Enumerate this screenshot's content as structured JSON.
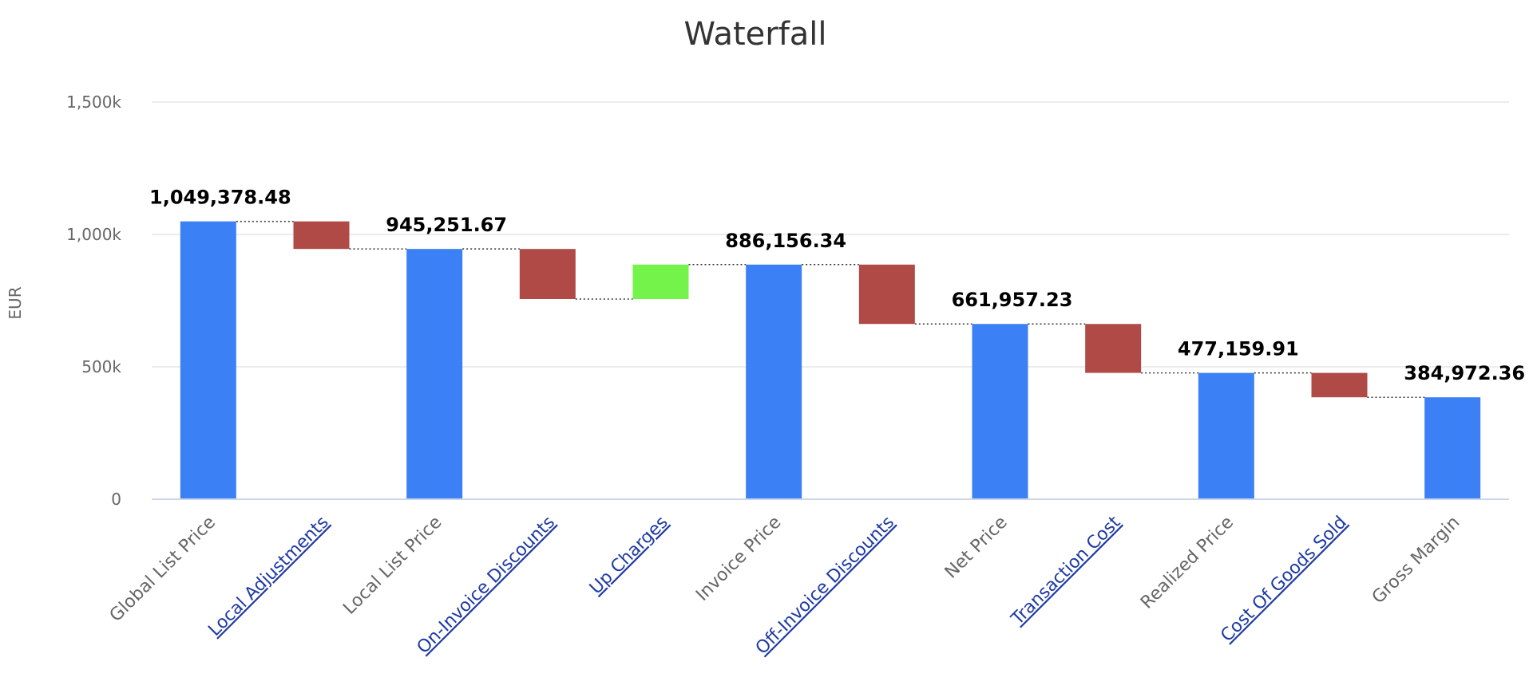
{
  "chart_data": {
    "type": "waterfall",
    "title": "Waterfall",
    "ylabel": "EUR",
    "ylim": [
      0,
      1500000
    ],
    "yticks": [
      {
        "value": 0,
        "label": "0"
      },
      {
        "value": 500000,
        "label": "500k"
      },
      {
        "value": 1000000,
        "label": "1,000k"
      },
      {
        "value": 1500000,
        "label": "1,500k"
      }
    ],
    "grid": true,
    "colors": {
      "total": "#3b80f5",
      "decrease": "#b04a46",
      "increase": "#74f34a",
      "grid": "#e6e6e6",
      "axis": "#ccd6eb",
      "connector": "#333333"
    },
    "bars": [
      {
        "category": "Global List Price",
        "kind": "total",
        "start": 0,
        "end": 1049378.48,
        "data_label": "1,049,378.48",
        "link": false
      },
      {
        "category": "Local Adjustments",
        "kind": "decrease",
        "start": 1049378.48,
        "end": 945251.67,
        "data_label": "",
        "link": true
      },
      {
        "category": "Local List Price",
        "kind": "total",
        "start": 0,
        "end": 945251.67,
        "data_label": "945,251.67",
        "link": false
      },
      {
        "category": "On-Invoice Discounts",
        "kind": "decrease",
        "start": 945251.67,
        "end": 756000,
        "data_label": "",
        "link": true
      },
      {
        "category": "Up Charges",
        "kind": "increase",
        "start": 756000,
        "end": 886156.34,
        "data_label": "",
        "link": true
      },
      {
        "category": "Invoice Price",
        "kind": "total",
        "start": 0,
        "end": 886156.34,
        "data_label": "886,156.34",
        "link": false
      },
      {
        "category": "Off-Invoice Discounts",
        "kind": "decrease",
        "start": 886156.34,
        "end": 661957.23,
        "data_label": "",
        "link": true
      },
      {
        "category": "Net Price",
        "kind": "total",
        "start": 0,
        "end": 661957.23,
        "data_label": "661,957.23",
        "link": false
      },
      {
        "category": "Transaction Cost",
        "kind": "decrease",
        "start": 661957.23,
        "end": 477159.91,
        "data_label": "",
        "link": true
      },
      {
        "category": "Realized Price",
        "kind": "total",
        "start": 0,
        "end": 477159.91,
        "data_label": "477,159.91",
        "link": false
      },
      {
        "category": "Cost Of Goods Sold",
        "kind": "decrease",
        "start": 477159.91,
        "end": 384972.36,
        "data_label": "",
        "link": true
      },
      {
        "category": "Gross Margin",
        "kind": "total",
        "start": 0,
        "end": 384972.36,
        "data_label": "384,972.36",
        "link": false
      }
    ]
  }
}
